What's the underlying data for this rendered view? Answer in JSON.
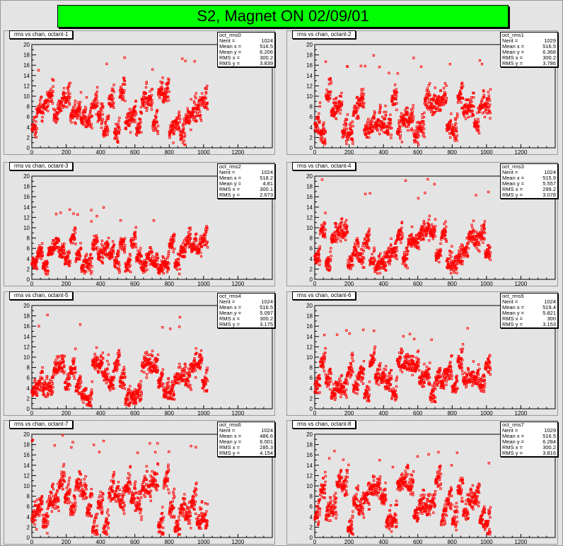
{
  "page_title": "S2, Magnet ON 02/09/01",
  "colors": {
    "title_bg": "#00ff00",
    "marker": "#ff0000",
    "frame_bg": "#e8e8e8",
    "plot_bg": "#e4e4e4"
  },
  "chart_data": [
    {
      "type": "scatter",
      "title": "rms vs chan, octant-1",
      "stats_name": "oct_rms0",
      "stats": [
        [
          "Nent",
          "1024"
        ],
        [
          "Mean x",
          "516.5"
        ],
        [
          "Mean y",
          "6.206"
        ],
        [
          "RMS x",
          "300.2"
        ],
        [
          "RMS y",
          "3.839"
        ]
      ],
      "xlim": [
        0,
        1400
      ],
      "ylim": [
        0,
        20
      ],
      "xticks": [
        0,
        200,
        400,
        600,
        800,
        1000,
        1200
      ],
      "yticks": [
        0,
        2,
        4,
        6,
        8,
        10,
        12,
        14,
        16,
        18,
        20
      ],
      "mean_y": 6.2,
      "rms_y": 3.84,
      "max_y": 18.5,
      "seed": 11
    },
    {
      "type": "scatter",
      "title": "rms vs chan, octant-2",
      "stats_name": "oct_rms1",
      "stats": [
        [
          "Nent",
          "1029"
        ],
        [
          "Mean x",
          "516.5"
        ],
        [
          "Mean y",
          "6.368"
        ],
        [
          "RMS x",
          "300.2"
        ],
        [
          "RMS y",
          "3.786"
        ]
      ],
      "xlim": [
        0,
        1400
      ],
      "ylim": [
        0,
        20
      ],
      "xticks": [
        0,
        200,
        400,
        600,
        800,
        1000,
        1200
      ],
      "yticks": [
        0,
        2,
        4,
        6,
        8,
        10,
        12,
        14,
        16,
        18,
        20
      ],
      "mean_y": 6.37,
      "rms_y": 3.79,
      "max_y": 18,
      "seed": 22
    },
    {
      "type": "scatter",
      "title": "rms vs chan, octant-3",
      "stats_name": "oct_rms2",
      "stats": [
        [
          "Nent",
          "1024"
        ],
        [
          "Mean x",
          "518.2"
        ],
        [
          "Mean y",
          "4.81"
        ],
        [
          "RMS x",
          "300.1"
        ],
        [
          "RMS y",
          "2.673"
        ]
      ],
      "xlim": [
        0,
        1400
      ],
      "ylim": [
        0,
        20
      ],
      "xticks": [
        0,
        200,
        400,
        600,
        800,
        1000,
        1200
      ],
      "yticks": [
        0,
        2,
        4,
        6,
        8,
        10,
        12,
        14,
        16,
        18,
        20
      ],
      "mean_y": 4.81,
      "rms_y": 2.67,
      "max_y": 14,
      "seed": 33
    },
    {
      "type": "scatter",
      "title": "rms vs chan, octant-4",
      "stats_name": "oct_rms3",
      "stats": [
        [
          "Nent",
          "1024"
        ],
        [
          "Mean x",
          "515.9"
        ],
        [
          "Mean y",
          "5.557"
        ],
        [
          "RMS x",
          "299.2"
        ],
        [
          "RMS y",
          "3.078"
        ]
      ],
      "xlim": [
        0,
        1400
      ],
      "ylim": [
        0,
        20
      ],
      "xticks": [
        0,
        200,
        400,
        600,
        800,
        1000,
        1200
      ],
      "yticks": [
        0,
        2,
        4,
        6,
        8,
        10,
        12,
        14,
        16,
        18,
        20
      ],
      "mean_y": 5.56,
      "rms_y": 3.08,
      "max_y": 19.5,
      "seed": 44
    },
    {
      "type": "scatter",
      "title": "rms vs chan, octant-5",
      "stats_name": "oct_rms4",
      "stats": [
        [
          "Nent",
          "1024"
        ],
        [
          "Mean x",
          "516.5"
        ],
        [
          "Mean y",
          "5.097"
        ],
        [
          "RMS x",
          "300.2"
        ],
        [
          "RMS y",
          "3.175"
        ]
      ],
      "xlim": [
        0,
        1400
      ],
      "ylim": [
        0,
        20
      ],
      "xticks": [
        0,
        200,
        400,
        600,
        800,
        1000,
        1200
      ],
      "yticks": [
        0,
        2,
        4,
        6,
        8,
        10,
        12,
        14,
        16,
        18,
        20
      ],
      "mean_y": 5.1,
      "rms_y": 3.18,
      "max_y": 18.5,
      "seed": 55
    },
    {
      "type": "scatter",
      "title": "rms vs chan, octant-6",
      "stats_name": "oct_rms5",
      "stats": [
        [
          "Nent",
          "1024"
        ],
        [
          "Mean x",
          "519.4"
        ],
        [
          "Mean y",
          "5.821"
        ],
        [
          "RMS x",
          "300"
        ],
        [
          "RMS y",
          "3.153"
        ]
      ],
      "xlim": [
        0,
        1400
      ],
      "ylim": [
        0,
        20
      ],
      "xticks": [
        0,
        200,
        400,
        600,
        800,
        1000,
        1200
      ],
      "yticks": [
        0,
        2,
        4,
        6,
        8,
        10,
        12,
        14,
        16,
        18,
        20
      ],
      "mean_y": 5.82,
      "rms_y": 3.15,
      "max_y": 16,
      "seed": 66
    },
    {
      "type": "scatter",
      "title": "rms vs chan, octant-7",
      "stats_name": "oct_rms6",
      "stats": [
        [
          "Nent",
          "1024"
        ],
        [
          "Mean x",
          "486.6"
        ],
        [
          "Mean y",
          "6.001"
        ],
        [
          "RMS x",
          "285.3"
        ],
        [
          "RMS y",
          "4.154"
        ]
      ],
      "xlim": [
        0,
        1400
      ],
      "ylim": [
        0,
        20
      ],
      "xticks": [
        0,
        200,
        400,
        600,
        800,
        1000,
        1200
      ],
      "yticks": [
        0,
        2,
        4,
        6,
        8,
        10,
        12,
        14,
        16,
        18,
        20
      ],
      "mean_y": 6.0,
      "rms_y": 4.15,
      "max_y": 19.8,
      "seed": 77
    },
    {
      "type": "scatter",
      "title": "rms vs chan, octant-8",
      "stats_name": "oct_rms7",
      "stats": [
        [
          "Nent",
          "1029"
        ],
        [
          "Mean x",
          "516.5"
        ],
        [
          "Mean y",
          "6.284"
        ],
        [
          "RMS x",
          "300.2"
        ],
        [
          "RMS y",
          "3.816"
        ]
      ],
      "xlim": [
        0,
        1400
      ],
      "ylim": [
        0,
        20
      ],
      "xticks": [
        0,
        200,
        400,
        600,
        800,
        1000,
        1200
      ],
      "yticks": [
        0,
        2,
        4,
        6,
        8,
        10,
        12,
        14,
        16,
        18,
        20
      ],
      "mean_y": 6.28,
      "rms_y": 3.82,
      "max_y": 17,
      "seed": 88
    }
  ]
}
